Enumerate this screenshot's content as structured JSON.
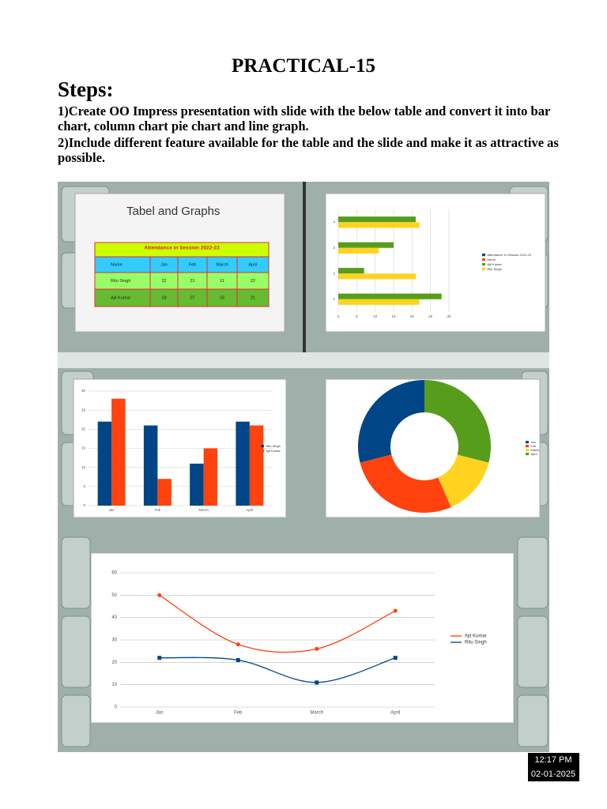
{
  "header": {
    "title": "PRACTICAL-15",
    "steps_heading": "Steps:",
    "steps": [
      "1)Create OO Impress presentation with slide with the below table and convert it into bar chart, column chart pie chart and line graph.",
      "2)Include different feature available for the table and the slide and make it as attractive as possible."
    ]
  },
  "slide": {
    "title": "Tabel and Graphs",
    "table": {
      "caption": "Attendance in Session 2022-23",
      "rows": [
        [
          "Name",
          "Jan",
          "Feb",
          "March",
          "April"
        ],
        [
          "Ritu Singh",
          "22",
          "21",
          "11",
          "22"
        ],
        [
          "Ajit Kumar",
          "28",
          "07",
          "15",
          "21"
        ]
      ]
    }
  },
  "chart_data": [
    {
      "type": "bar",
      "horizontal": true,
      "categories": [
        "1",
        "2",
        "3",
        "4"
      ],
      "series": [
        {
          "name": "Attendance in Session 2022-23",
          "color": "#004586",
          "values": [
            null,
            null,
            null,
            null
          ]
        },
        {
          "name": "Name",
          "color": "#ff420e",
          "values": [
            null,
            null,
            null,
            null
          ]
        },
        {
          "name": "Ajit Kumar",
          "color": "#579d1c",
          "values": [
            28,
            7,
            15,
            21
          ]
        },
        {
          "name": "Ritu Singh",
          "color": "#ffd320",
          "values": [
            22,
            21,
            11,
            22
          ]
        }
      ],
      "xlim": [
        0,
        30
      ],
      "xticks": [
        0,
        5,
        10,
        15,
        20,
        25,
        30
      ],
      "grid": true
    },
    {
      "type": "bar",
      "horizontal": false,
      "categories": [
        "Jan",
        "Feb",
        "March",
        "April"
      ],
      "series": [
        {
          "name": "Ritu Singh",
          "color": "#004586",
          "values": [
            22,
            21,
            11,
            22
          ]
        },
        {
          "name": "Ajit Kumar",
          "color": "#ff420e",
          "values": [
            28,
            7,
            15,
            21
          ]
        }
      ],
      "ylim": [
        0,
        30
      ],
      "yticks": [
        0,
        5,
        10,
        15,
        20,
        25,
        30
      ],
      "grid": true
    },
    {
      "type": "pie",
      "donut": true,
      "categories": [
        "Jan",
        "Feb",
        "March",
        "April"
      ],
      "values": [
        22,
        21,
        11,
        22
      ],
      "colors": [
        "#004586",
        "#ff420e",
        "#ffd320",
        "#579d1c"
      ]
    },
    {
      "type": "line",
      "categories": [
        "Jan",
        "Feb",
        "March",
        "April"
      ],
      "series": [
        {
          "name": "Ajit Kumar",
          "color": "#ff420e",
          "values": [
            50,
            28,
            26,
            43
          ]
        },
        {
          "name": "Ritu Singh",
          "color": "#004586",
          "values": [
            22,
            21,
            11,
            22
          ]
        }
      ],
      "ylim": [
        0,
        60
      ],
      "yticks": [
        0,
        10,
        20,
        30,
        40,
        50,
        60
      ],
      "grid": true
    }
  ],
  "taskbar": {
    "time": "12:17 PM",
    "date": "02-01-2025"
  }
}
